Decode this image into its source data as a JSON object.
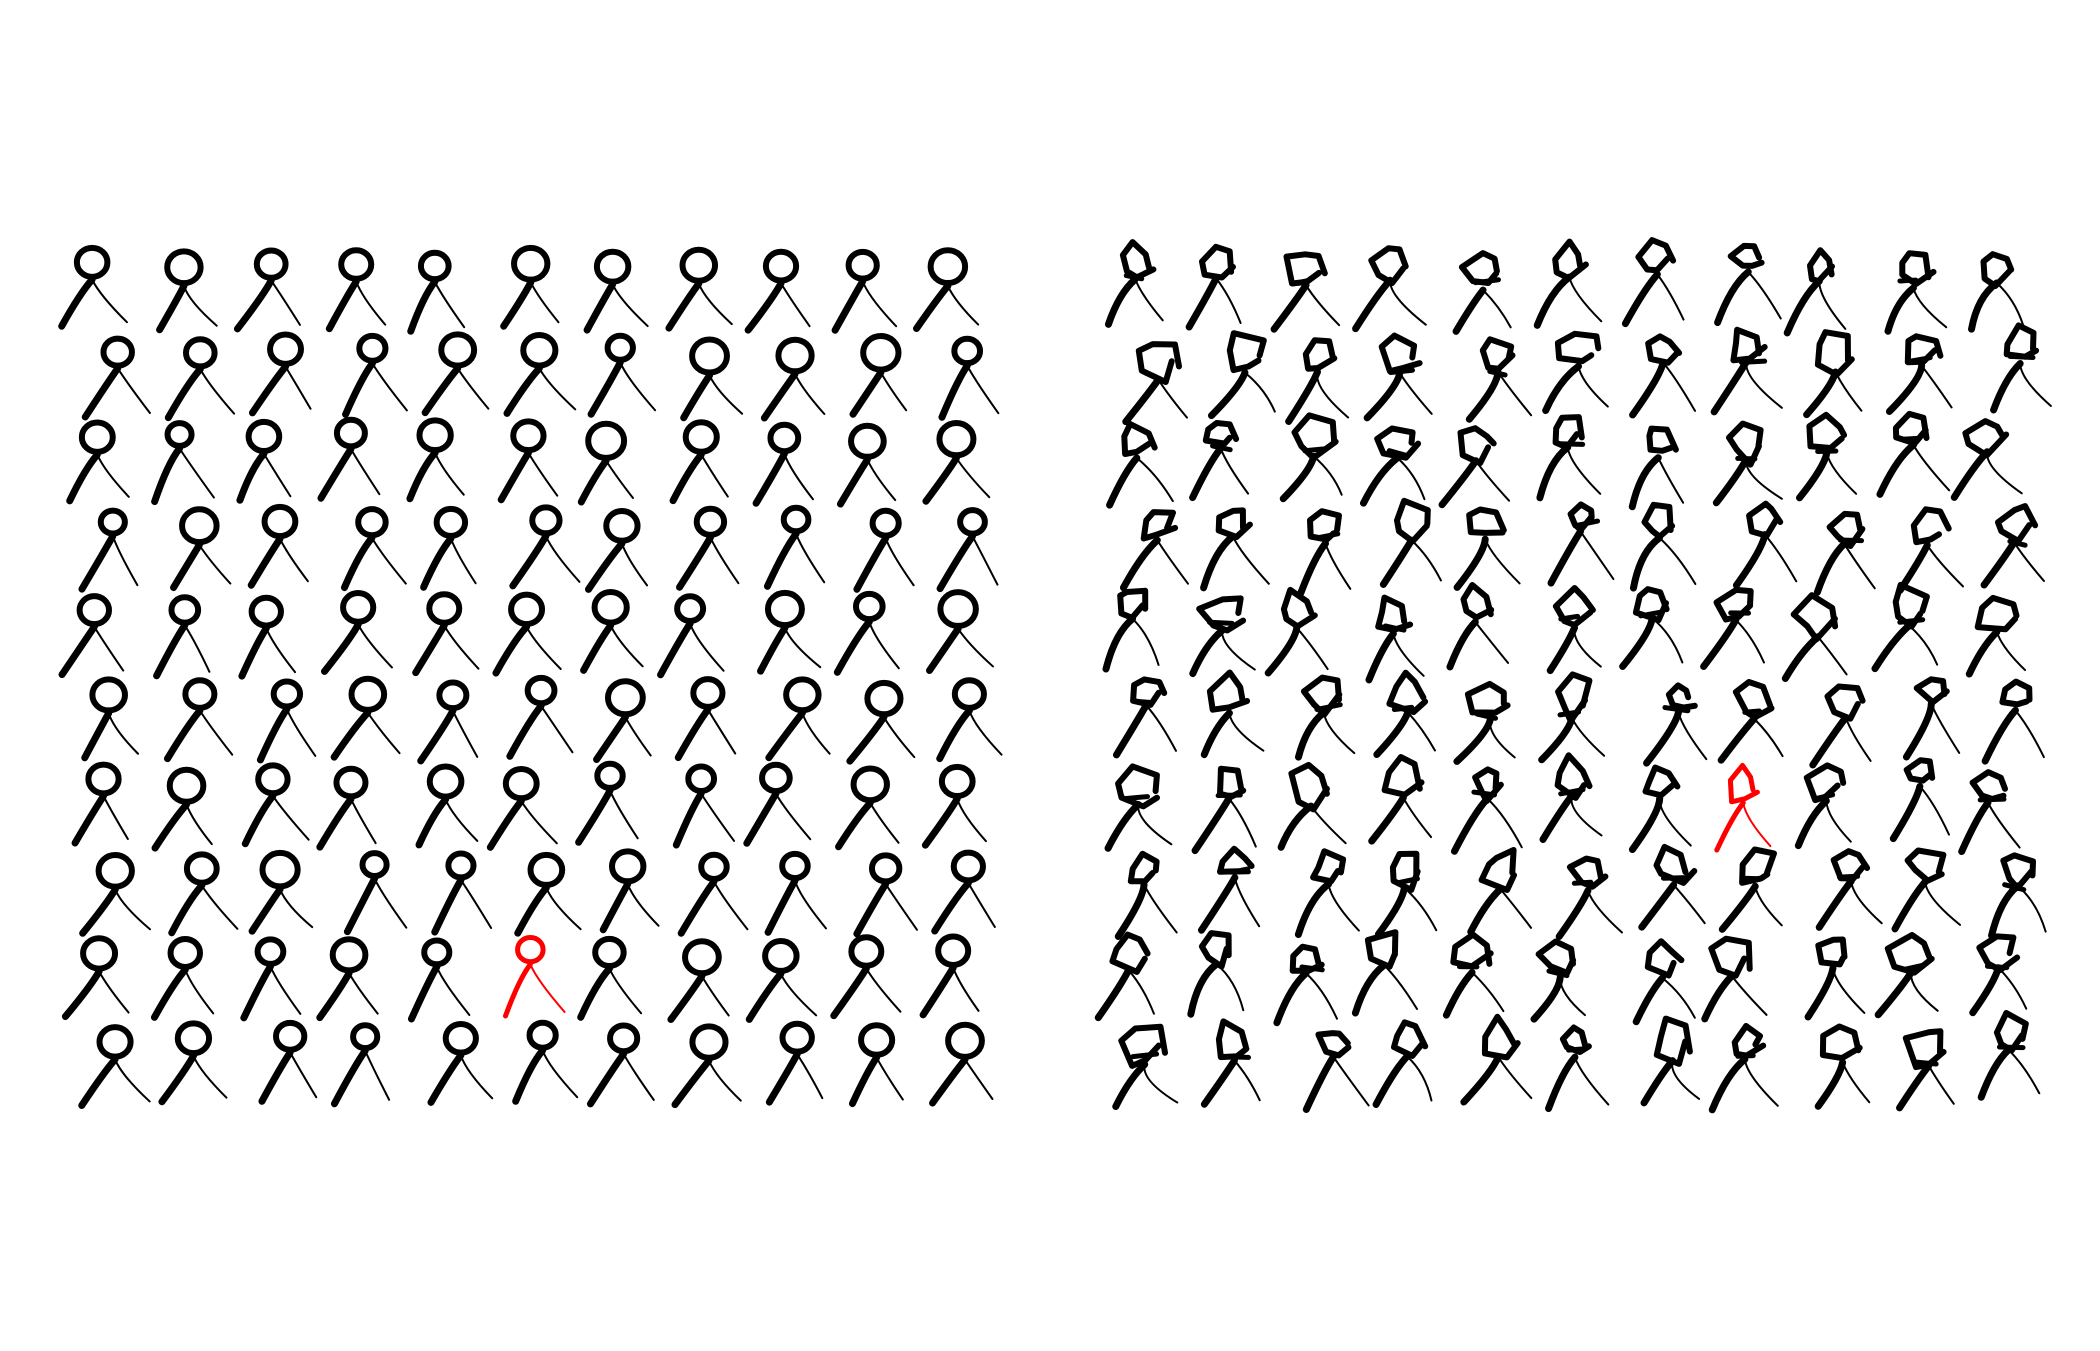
{
  "colors": {
    "background": "#ffffff",
    "figure": "#000000",
    "highlight": "#ff0000"
  },
  "panels": [
    {
      "name": "uniform-crowd",
      "rows": 10,
      "cols": 11,
      "style": "neat",
      "highlight": {
        "row": 8,
        "col": 5
      }
    },
    {
      "name": "varied-crowd",
      "rows": 10,
      "cols": 11,
      "style": "messy",
      "highlight": {
        "row": 6,
        "col": 7
      }
    }
  ]
}
